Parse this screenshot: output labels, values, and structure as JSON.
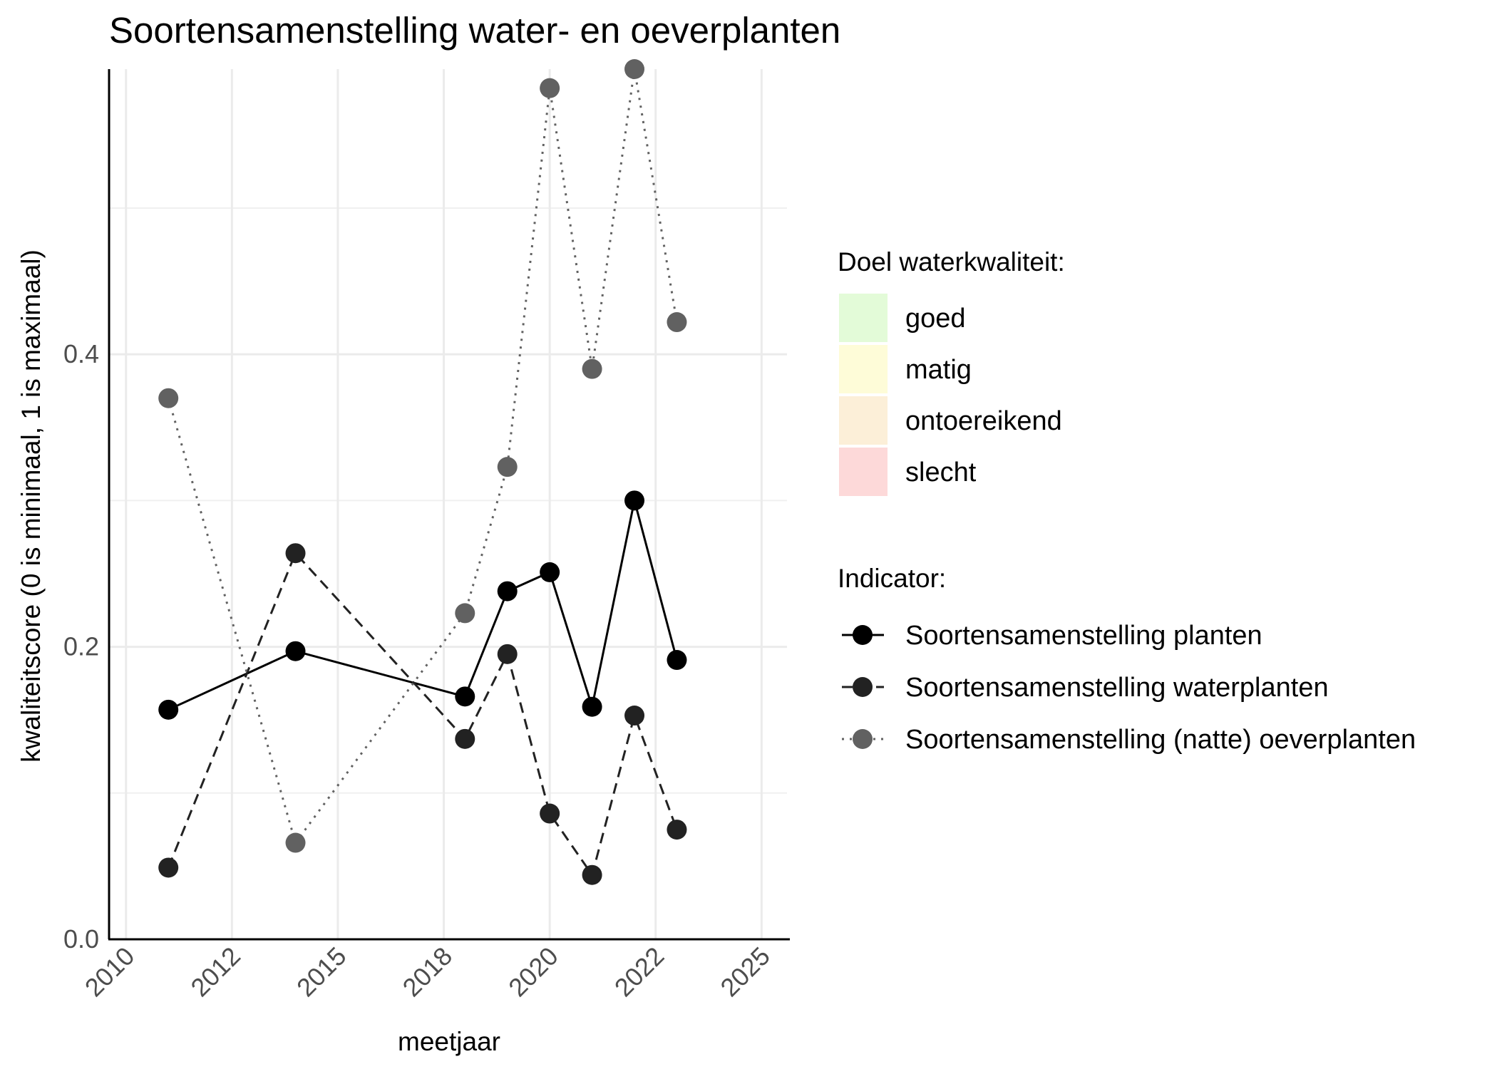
{
  "chart_data": {
    "type": "line",
    "title": "Soortensamenstelling water- en oeverplanten",
    "xlabel": "meetjaar",
    "ylabel": "kwaliteitscore (0 is minimaal, 1 is maximaal)",
    "xlim": [
      2009.6,
      2025.6
    ],
    "ylim": [
      0,
      0.595
    ],
    "x_ticks": [
      2010,
      2012.5,
      2015,
      2017.5,
      2020,
      2022.5,
      2025
    ],
    "x_tick_labels": [
      "2010",
      "2012",
      "2015",
      "2018",
      "2020",
      "2022",
      "2025"
    ],
    "y_ticks": [
      0,
      0.2,
      0.4
    ],
    "y_tick_labels": [
      "0.0",
      "0.2",
      "0.4"
    ],
    "grid": true,
    "legend_position": "right",
    "quality_legend": {
      "title": "Doel waterkwaliteit:",
      "items": [
        {
          "label": "goed",
          "color": "#e3fbd8"
        },
        {
          "label": "matig",
          "color": "#fefcd8"
        },
        {
          "label": "ontoereikend",
          "color": "#fcefd8"
        },
        {
          "label": "slecht",
          "color": "#fdd9d9"
        }
      ]
    },
    "indicator_legend": {
      "title": "Indicator:"
    },
    "series": [
      {
        "name": "Soortensamenstelling planten",
        "color": "#000000",
        "dash": "solid",
        "x": [
          2011,
          2014,
          2018,
          2019,
          2020,
          2021,
          2022,
          2023
        ],
        "y": [
          0.157,
          0.197,
          0.166,
          0.238,
          0.251,
          0.159,
          0.3,
          0.191
        ]
      },
      {
        "name": "Soortensamenstelling waterplanten",
        "color": "#222222",
        "dash": "dashed",
        "x": [
          2011,
          2014,
          2018,
          2019,
          2020,
          2021,
          2022,
          2023
        ],
        "y": [
          0.049,
          0.264,
          0.137,
          0.195,
          0.086,
          0.044,
          0.153,
          0.075
        ]
      },
      {
        "name": "Soortensamenstelling (natte) oeverplanten",
        "color": "#616161",
        "dash": "dotted",
        "x": [
          2011,
          2014,
          2018,
          2019,
          2020,
          2021,
          2022,
          2023
        ],
        "y": [
          0.37,
          0.066,
          0.223,
          0.323,
          0.582,
          0.39,
          0.595,
          0.422
        ]
      }
    ]
  }
}
